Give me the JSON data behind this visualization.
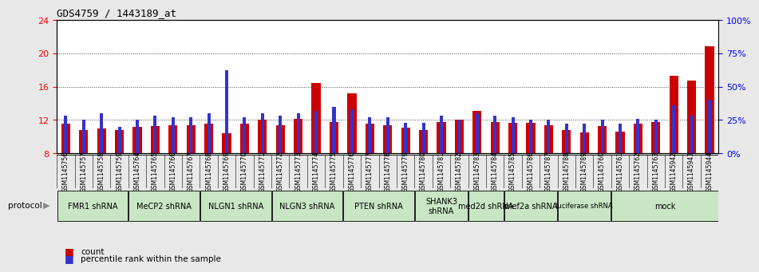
{
  "title": "GDS4759 / 1443189_at",
  "samples": [
    "GSM1145756",
    "GSM1145757",
    "GSM1145758",
    "GSM1145759",
    "GSM1145764",
    "GSM1145765",
    "GSM1145766",
    "GSM1145767",
    "GSM1145768",
    "GSM1145769",
    "GSM1145770",
    "GSM1145771",
    "GSM1145772",
    "GSM1145773",
    "GSM1145774",
    "GSM1145775",
    "GSM1145776",
    "GSM1145777",
    "GSM1145778",
    "GSM1145779",
    "GSM1145780",
    "GSM1145781",
    "GSM1145782",
    "GSM1145783",
    "GSM1145784",
    "GSM1145785",
    "GSM1145786",
    "GSM1145787",
    "GSM1145788",
    "GSM1145789",
    "GSM1145760",
    "GSM1145761",
    "GSM1145762",
    "GSM1145763",
    "GSM1145942",
    "GSM1145943",
    "GSM1145944"
  ],
  "red_values": [
    11.5,
    10.8,
    11.0,
    10.8,
    11.2,
    11.3,
    11.4,
    11.4,
    11.5,
    10.4,
    11.5,
    12.0,
    11.4,
    12.1,
    16.4,
    11.7,
    15.2,
    11.5,
    11.4,
    11.1,
    10.8,
    11.7,
    12.0,
    13.1,
    11.7,
    11.6,
    11.6,
    11.4,
    10.8,
    10.5,
    11.3,
    10.6,
    11.5,
    11.7,
    17.3,
    16.7,
    20.8
  ],
  "blue_pct": [
    28,
    25,
    30,
    20,
    25,
    28,
    27,
    27,
    30,
    62,
    27,
    30,
    28,
    30,
    32,
    35,
    33,
    27,
    27,
    23,
    23,
    28,
    25,
    30,
    28,
    27,
    25,
    25,
    22,
    22,
    25,
    22,
    26,
    25,
    36,
    28,
    40
  ],
  "protocols": [
    {
      "label": "FMR1 shRNA",
      "start": 0,
      "end": 4
    },
    {
      "label": "MeCP2 shRNA",
      "start": 4,
      "end": 8
    },
    {
      "label": "NLGN1 shRNA",
      "start": 8,
      "end": 12
    },
    {
      "label": "NLGN3 shRNA",
      "start": 12,
      "end": 16
    },
    {
      "label": "PTEN shRNA",
      "start": 16,
      "end": 20
    },
    {
      "label": "SHANK3\nshRNA",
      "start": 20,
      "end": 23
    },
    {
      "label": "med2d shRNA",
      "start": 23,
      "end": 25
    },
    {
      "label": "mef2a shRNA",
      "start": 25,
      "end": 28
    },
    {
      "label": "luciferase shRNA",
      "start": 28,
      "end": 31
    },
    {
      "label": "mock",
      "start": 31,
      "end": 37
    }
  ],
  "ylim_left": [
    8,
    24
  ],
  "ylim_right": [
    0,
    100
  ],
  "yticks_left": [
    8,
    12,
    16,
    20,
    24
  ],
  "yticks_right": [
    0,
    25,
    50,
    75,
    100
  ],
  "red_color": "#cc0000",
  "blue_color": "#3333cc",
  "bar_width": 0.5,
  "blue_bar_width": 0.18,
  "bg_color": "#e8e8e8",
  "plot_bg": "#ffffff",
  "sample_bg": "#d0d0d0",
  "proto_color": "#c8e6c4",
  "grid_color": "#444444",
  "legend_count": "count",
  "legend_percentile": "percentile rank within the sample"
}
